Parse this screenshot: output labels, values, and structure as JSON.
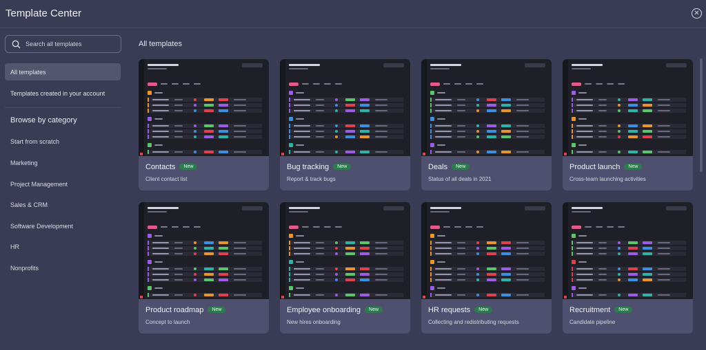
{
  "header": {
    "title": "Template Center"
  },
  "sidebar": {
    "search_placeholder": "Search all templates",
    "nav": [
      {
        "label": "All templates",
        "active": true
      },
      {
        "label": "Templates created in your account",
        "active": false
      }
    ],
    "browse_heading": "Browse by category",
    "categories": [
      "Start from scratch",
      "Marketing",
      "Project Management",
      "Sales & CRM",
      "Software Development",
      "HR",
      "Nonprofits"
    ]
  },
  "main": {
    "title": "All templates",
    "cards": [
      {
        "name": "Contacts",
        "badge": "New",
        "desc": "Client contact list"
      },
      {
        "name": "Bug tracking",
        "badge": "New",
        "desc": "Report & track bugs"
      },
      {
        "name": "Deals",
        "badge": "New",
        "desc": "Status of all deals in 2021"
      },
      {
        "name": "Product launch",
        "badge": "New",
        "desc": "Cross-team launching activities"
      },
      {
        "name": "Product roadmap",
        "badge": "New",
        "desc": "Concept to launch"
      },
      {
        "name": "Employee onboarding",
        "badge": "New",
        "desc": "New hires onboarding"
      },
      {
        "name": "HR requests",
        "badge": "New",
        "desc": "Collecting and redistributing requests"
      },
      {
        "name": "Recruitment",
        "badge": "New",
        "desc": "Candidate pipeline"
      }
    ]
  },
  "colors": {
    "background": "#3a3b54",
    "card": "#4f5070",
    "thumb_bg": "#26262f",
    "badge": "#2e7a4f",
    "pink": "#e05a8a",
    "orange": "#e8952e",
    "green": "#5cc46b",
    "red": "#e0414f",
    "purple": "#9b5de5",
    "blue": "#3f8fe0",
    "teal": "#2fb3a6"
  }
}
